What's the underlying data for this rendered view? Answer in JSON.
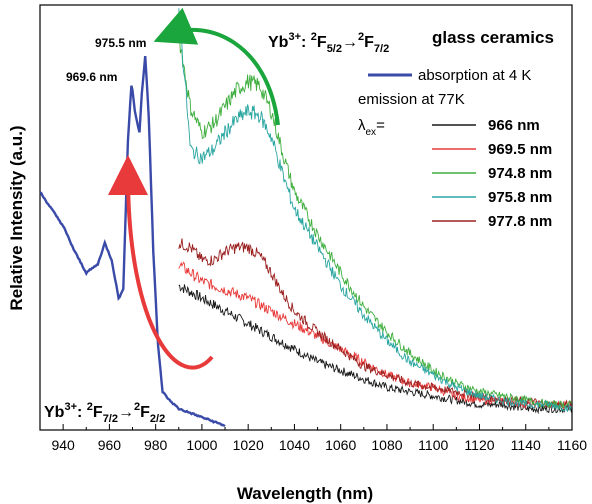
{
  "chart_data": {
    "type": "line",
    "xlabel": "Wavelength (nm)",
    "ylabel": "Relative Intensity (a.u.)",
    "xlim": [
      930,
      1160
    ],
    "ylim": [
      0,
      1
    ],
    "y_ticks_labeled": false,
    "x_ticks": [
      940,
      960,
      980,
      1000,
      1020,
      1040,
      1060,
      1080,
      1100,
      1120,
      1140,
      1160
    ],
    "legend_position": "top-right",
    "legend": {
      "header": "glass ceramics",
      "absorption_label": "absorption at 4 K",
      "emission_header": "emission at 77K",
      "lambda_label": "λex="
    },
    "peak_labels": [
      "969.6 nm",
      "975.5 nm"
    ],
    "transitions": {
      "emission": "Yb3+: 2F5/2→2F7/2",
      "absorption": "Yb3+: 2F7/2→2F2/2"
    },
    "series": [
      {
        "name": "absorption at 4 K",
        "color": "#3a4aa8",
        "points": [
          [
            930,
            0.56
          ],
          [
            935,
            0.52
          ],
          [
            940,
            0.48
          ],
          [
            945,
            0.42
          ],
          [
            950,
            0.37
          ],
          [
            955,
            0.39
          ],
          [
            958,
            0.44
          ],
          [
            961,
            0.4
          ],
          [
            964,
            0.31
          ],
          [
            966,
            0.33
          ],
          [
            968,
            0.68
          ],
          [
            969.6,
            0.82
          ],
          [
            971,
            0.75
          ],
          [
            973,
            0.7
          ],
          [
            974,
            0.79
          ],
          [
            975.5,
            0.88
          ],
          [
            977,
            0.74
          ],
          [
            979,
            0.42
          ],
          [
            981,
            0.2
          ],
          [
            983,
            0.09
          ],
          [
            986,
            0.07
          ],
          [
            990,
            0.05
          ],
          [
            995,
            0.04
          ],
          [
            1000,
            0.03
          ],
          [
            1005,
            0.02
          ],
          [
            1010,
            0.01
          ]
        ]
      },
      {
        "name": "966 nm",
        "color": "#1a1a1a",
        "points": [
          [
            990,
            0.34
          ],
          [
            1000,
            0.31
          ],
          [
            1010,
            0.28
          ],
          [
            1020,
            0.25
          ],
          [
            1030,
            0.22
          ],
          [
            1040,
            0.19
          ],
          [
            1050,
            0.16
          ],
          [
            1060,
            0.14
          ],
          [
            1070,
            0.12
          ],
          [
            1080,
            0.1
          ],
          [
            1090,
            0.09
          ],
          [
            1100,
            0.08
          ],
          [
            1110,
            0.07
          ],
          [
            1120,
            0.06
          ],
          [
            1130,
            0.06
          ],
          [
            1140,
            0.05
          ],
          [
            1150,
            0.05
          ],
          [
            1160,
            0.05
          ]
        ]
      },
      {
        "name": "969.5 nm",
        "color": "#e83a3a",
        "points": [
          [
            990,
            0.39
          ],
          [
            1000,
            0.35
          ],
          [
            1010,
            0.33
          ],
          [
            1020,
            0.31
          ],
          [
            1030,
            0.28
          ],
          [
            1040,
            0.25
          ],
          [
            1050,
            0.22
          ],
          [
            1060,
            0.19
          ],
          [
            1070,
            0.16
          ],
          [
            1080,
            0.13
          ],
          [
            1090,
            0.11
          ],
          [
            1100,
            0.1
          ],
          [
            1110,
            0.08
          ],
          [
            1120,
            0.07
          ],
          [
            1130,
            0.07
          ],
          [
            1140,
            0.06
          ],
          [
            1150,
            0.06
          ],
          [
            1160,
            0.06
          ]
        ]
      },
      {
        "name": "974.8 nm",
        "color": "#3fae3f",
        "points": [
          [
            990,
            0.93
          ],
          [
            995,
            0.76
          ],
          [
            1000,
            0.7
          ],
          [
            1005,
            0.72
          ],
          [
            1010,
            0.76
          ],
          [
            1015,
            0.8
          ],
          [
            1020,
            0.82
          ],
          [
            1025,
            0.81
          ],
          [
            1030,
            0.75
          ],
          [
            1035,
            0.65
          ],
          [
            1040,
            0.56
          ],
          [
            1050,
            0.46
          ],
          [
            1060,
            0.37
          ],
          [
            1070,
            0.29
          ],
          [
            1080,
            0.23
          ],
          [
            1090,
            0.18
          ],
          [
            1100,
            0.14
          ],
          [
            1110,
            0.11
          ],
          [
            1120,
            0.09
          ],
          [
            1130,
            0.08
          ],
          [
            1140,
            0.07
          ],
          [
            1150,
            0.06
          ],
          [
            1160,
            0.06
          ]
        ]
      },
      {
        "name": "975.8 nm",
        "color": "#2aa6a0",
        "points": [
          [
            990,
            0.99
          ],
          [
            993,
            0.8
          ],
          [
            995,
            0.66
          ],
          [
            1000,
            0.64
          ],
          [
            1005,
            0.66
          ],
          [
            1010,
            0.7
          ],
          [
            1015,
            0.73
          ],
          [
            1020,
            0.75
          ],
          [
            1025,
            0.74
          ],
          [
            1030,
            0.69
          ],
          [
            1035,
            0.6
          ],
          [
            1040,
            0.52
          ],
          [
            1050,
            0.43
          ],
          [
            1060,
            0.34
          ],
          [
            1070,
            0.27
          ],
          [
            1080,
            0.21
          ],
          [
            1090,
            0.16
          ],
          [
            1100,
            0.13
          ],
          [
            1110,
            0.1
          ],
          [
            1120,
            0.08
          ],
          [
            1130,
            0.07
          ],
          [
            1140,
            0.06
          ],
          [
            1150,
            0.06
          ],
          [
            1160,
            0.05
          ]
        ]
      },
      {
        "name": "977.8 nm",
        "color": "#9b2020",
        "points": [
          [
            990,
            0.44
          ],
          [
            995,
            0.43
          ],
          [
            1000,
            0.4
          ],
          [
            1005,
            0.4
          ],
          [
            1010,
            0.42
          ],
          [
            1015,
            0.43
          ],
          [
            1020,
            0.43
          ],
          [
            1025,
            0.41
          ],
          [
            1030,
            0.37
          ],
          [
            1035,
            0.32
          ],
          [
            1040,
            0.28
          ],
          [
            1050,
            0.23
          ],
          [
            1060,
            0.19
          ],
          [
            1070,
            0.15
          ],
          [
            1080,
            0.13
          ],
          [
            1090,
            0.11
          ],
          [
            1100,
            0.1
          ],
          [
            1110,
            0.09
          ],
          [
            1120,
            0.08
          ],
          [
            1130,
            0.07
          ],
          [
            1140,
            0.07
          ],
          [
            1150,
            0.06
          ],
          [
            1160,
            0.06
          ]
        ]
      }
    ],
    "arrows": [
      {
        "name": "emission-arrow",
        "color": "#1aa63c",
        "direction": "right-to-left"
      },
      {
        "name": "absorption-arrow",
        "color": "#e83a3a",
        "direction": "bottom-up"
      }
    ]
  }
}
